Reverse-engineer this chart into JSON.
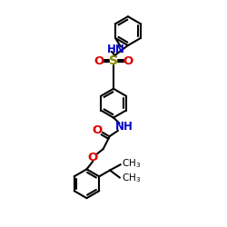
{
  "bg": "#ffffff",
  "bond_color": "#000000",
  "N_color": "#0000cc",
  "O_color": "#dd0000",
  "S_color": "#888800",
  "lw": 1.5,
  "dbl_sep": 0.06,
  "figsize": [
    2.5,
    2.5
  ],
  "dpi": 100,
  "xlim": [
    -1.5,
    3.5
  ],
  "ylim": [
    -0.5,
    10.5
  ]
}
